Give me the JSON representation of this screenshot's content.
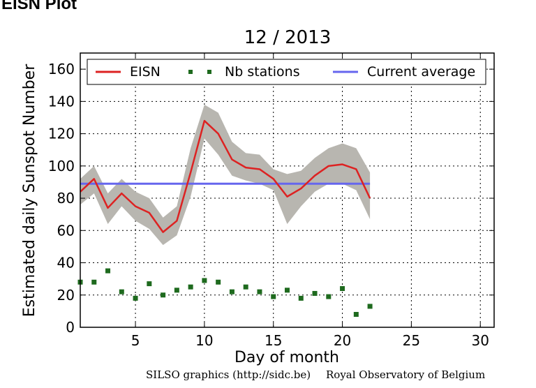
{
  "page": {
    "heading": "EISN Plot",
    "credit_left": "SILSO graphics (http://sidc.be)",
    "credit_right": "Royal Observatory of Belgium"
  },
  "chart_data": {
    "type": "line",
    "title": "12 / 2013",
    "xlabel": "Day of month",
    "ylabel": "Estimated daily Sunspot Number",
    "xlim": [
      1,
      31
    ],
    "ylim": [
      0,
      170
    ],
    "xticks": [
      5,
      10,
      15,
      20,
      25,
      30
    ],
    "yticks": [
      0,
      20,
      40,
      60,
      80,
      100,
      120,
      140,
      160
    ],
    "grid": true,
    "legend_position": "top",
    "colors": {
      "eisn": "#dd2222",
      "band": "#b8b6b0",
      "stations": "#1e6a1e",
      "average": "#6666ee"
    },
    "series": [
      {
        "name": "EISN",
        "kind": "line",
        "x": [
          1,
          2,
          3,
          4,
          5,
          6,
          7,
          8,
          9,
          10,
          11,
          12,
          13,
          14,
          15,
          16,
          17,
          18,
          19,
          20,
          21,
          22
        ],
        "values": [
          84,
          92,
          74,
          83,
          75,
          71,
          59,
          66,
          96,
          128,
          120,
          104,
          99,
          98,
          92,
          81,
          86,
          94,
          100,
          101,
          98,
          80
        ]
      },
      {
        "name": "EISN uncertainty",
        "kind": "band",
        "x": [
          1,
          2,
          3,
          4,
          5,
          6,
          7,
          8,
          9,
          10,
          11,
          12,
          13,
          14,
          15,
          16,
          17,
          18,
          19,
          20,
          21,
          22
        ],
        "upper": [
          92,
          100,
          83,
          92,
          84,
          80,
          68,
          75,
          111,
          138,
          133,
          115,
          108,
          107,
          98,
          95,
          97,
          105,
          111,
          114,
          111,
          96
        ],
        "lower": [
          76,
          83,
          64,
          75,
          66,
          61,
          51,
          57,
          81,
          117,
          107,
          94,
          91,
          89,
          85,
          64,
          75,
          84,
          89,
          89,
          85,
          67
        ]
      },
      {
        "name": "Nb stations",
        "kind": "scatter",
        "x": [
          1,
          2,
          3,
          4,
          5,
          6,
          7,
          8,
          9,
          10,
          11,
          12,
          13,
          14,
          15,
          16,
          17,
          18,
          19,
          20,
          21,
          22
        ],
        "values": [
          28,
          28,
          35,
          22,
          18,
          27,
          20,
          23,
          25,
          29,
          28,
          22,
          25,
          22,
          19,
          23,
          18,
          21,
          19,
          24,
          8,
          13
        ]
      },
      {
        "name": "Current average",
        "kind": "hline",
        "x": [
          1,
          22
        ],
        "values": [
          89,
          89
        ]
      }
    ],
    "legend": [
      "EISN",
      "Nb stations",
      "Current average"
    ]
  }
}
